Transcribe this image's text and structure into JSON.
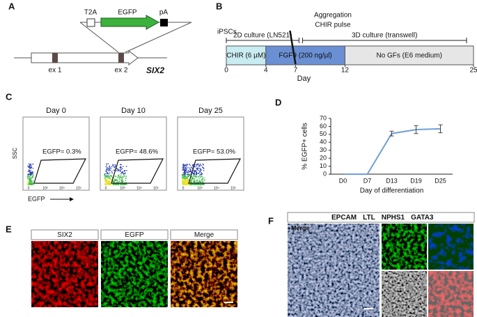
{
  "panels": {
    "a": "A",
    "b": "B",
    "c": "C",
    "d": "D",
    "e": "E",
    "f": "F"
  },
  "construct": {
    "t2a": "T2A",
    "egfp": "EGFP",
    "pa": "pA",
    "ex1": "ex 1",
    "ex2": "ex 2",
    "gene": "SIX2"
  },
  "timeline": {
    "ipscs": "iPSCs",
    "aggregation": "Aggregation",
    "chir_pulse": "CHIR pulse",
    "culture_2d": "2D culture (LN521)",
    "culture_3d": "3D culture (transwell)",
    "stages": [
      {
        "label": "CHIR (6 µM)",
        "start": 0,
        "end": 4,
        "color": "#c8ecf1"
      },
      {
        "label": "FGF9 (200 ng/µl)",
        "start": 4,
        "end": 12,
        "color": "#6a8fd3"
      },
      {
        "label": "No GFs (E6 medium)",
        "start": 12,
        "end": 25,
        "color": "#e6e6e6"
      }
    ],
    "xlim": [
      0,
      25
    ],
    "days": [
      0,
      4,
      7,
      12,
      25
    ],
    "axis_label": "Day"
  },
  "flow": {
    "y_label": "SSC",
    "x_label": "EGFP",
    "tick_labels": [
      "0",
      "10³",
      "10⁴",
      "10⁵"
    ],
    "plots": [
      {
        "title": "Day 0",
        "gate": "EGFP= 0.3%"
      },
      {
        "title": "Day 10",
        "gate": "EGFP= 48.6%"
      },
      {
        "title": "Day 25",
        "gate": "EGFP= 53.0%"
      }
    ]
  },
  "chart_data": {
    "type": "line",
    "y_label": "% EGFP+ cells",
    "x_label": "Day of differentiation",
    "categories": [
      "D0",
      "D7",
      "D13",
      "D19",
      "D25"
    ],
    "values": [
      0,
      0,
      51,
      56,
      57
    ],
    "errors": [
      0,
      0,
      3,
      5,
      5
    ],
    "color": "#6f9fd6",
    "ylim": [
      0,
      70
    ],
    "yticks": [
      0,
      10,
      20,
      30,
      40,
      50,
      60,
      70
    ]
  },
  "images": {
    "e": [
      "SIX2",
      "EGFP",
      "Merge"
    ],
    "f_merge": "Merge",
    "f_markers": [
      {
        "name": "EPCAM",
        "color": "#2ca02c"
      },
      {
        "name": "LTL",
        "color": "#2a2aa0"
      },
      {
        "name": "NPHS1",
        "color": "#777777"
      },
      {
        "name": "GATA3",
        "color": "#e02020"
      }
    ]
  }
}
